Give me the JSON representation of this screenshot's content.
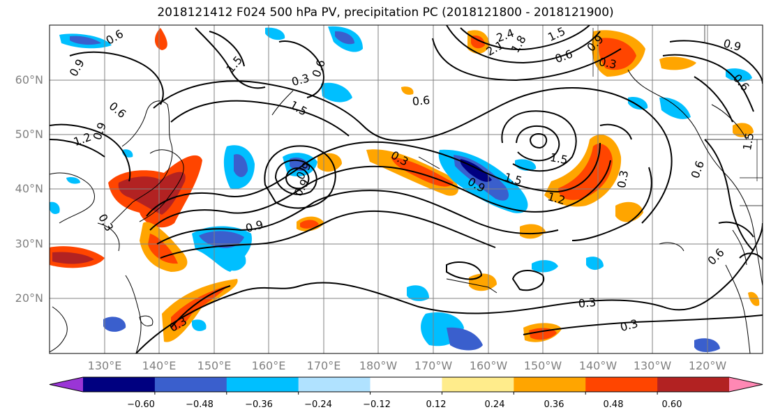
{
  "title": "2018121412 F024 500 hPa PV, precipitation PC (2018121800 - 2018121900)",
  "lat_labels": [
    "60°N",
    "50°N",
    "40°N",
    "30°N",
    "20°N"
  ],
  "lon_labels": [
    "130°E",
    "140°E",
    "150°E",
    "160°E",
    "170°E",
    "180°W",
    "170°W",
    "160°W",
    "150°W",
    "140°W",
    "130°W",
    "120°W"
  ],
  "contour_labels": [
    "0.6",
    "0.9",
    "1.5",
    "0.3",
    "0.6",
    "1.2",
    "0.9",
    "0.6",
    "0.3",
    "0.9",
    "1.5",
    "0.3",
    "0.9",
    "1.5",
    "1.2",
    "0.9",
    "1.5",
    "0.3",
    "0.3",
    "0.3",
    "0.6",
    "0.3",
    "0.9",
    "0.6",
    "2.4",
    "2.1",
    "1.8",
    "1.5",
    "0.6",
    "0.9",
    "0.3",
    "0.9",
    "0.6",
    "1.5",
    "0.6"
  ],
  "colorbar": {
    "ticks": [
      "−0.60",
      "−0.48",
      "−0.36",
      "−0.24",
      "−0.12",
      "0.12",
      "0.24",
      "0.36",
      "0.48",
      "0.60"
    ],
    "colors": [
      "#9a35d6",
      "#000080",
      "#3a5fcd",
      "#00bfff",
      "#b0e2ff",
      "#ffffff",
      "#ffec8b",
      "#ffa500",
      "#ff4500",
      "#b22222",
      "#ff88b4"
    ]
  }
}
